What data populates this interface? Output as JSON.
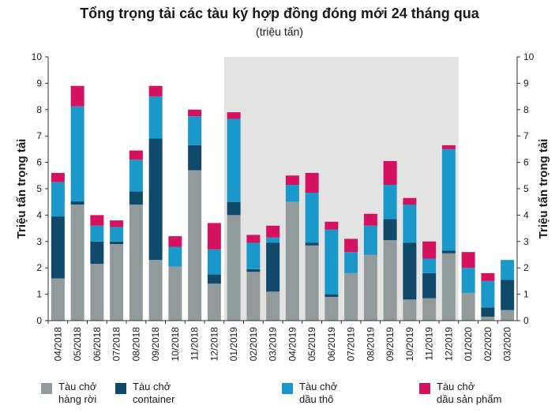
{
  "chart_data": {
    "type": "bar",
    "stacked": true,
    "title": "Tổng trọng tải các tàu ký hợp đồng đóng mới 24 tháng qua",
    "subtitle": "(triệu tấn)",
    "ylabel_left": "Triệu tấn trọng tải",
    "ylabel_right": "Triệu tấn trọng tải",
    "ylim": [
      0,
      10
    ],
    "yticks": [
      0,
      1,
      2,
      3,
      4,
      5,
      6,
      7,
      8,
      9,
      10
    ],
    "grid": false,
    "shaded_range": [
      "01/2019",
      "12/2019"
    ],
    "categories": [
      "04/2018",
      "05/2018",
      "06/2018",
      "07/2018",
      "08/2018",
      "09/2018",
      "10/2018",
      "11/2018",
      "12/2018",
      "01/2019",
      "02/2019",
      "03/2019",
      "04/2019",
      "05/2019",
      "06/2019",
      "07/2019",
      "08/2019",
      "09/2019",
      "10/2019",
      "11/2019",
      "12/2019",
      "01/2020",
      "02/2020",
      "03/2020"
    ],
    "series": [
      {
        "name": "Tàu chở\nhàng rời",
        "color": "#929b9c",
        "values": [
          1.6,
          4.4,
          2.15,
          2.9,
          4.4,
          2.3,
          2.05,
          5.7,
          1.4,
          4.0,
          1.85,
          1.1,
          4.5,
          2.85,
          0.9,
          1.8,
          2.5,
          3.05,
          0.8,
          0.85,
          2.55,
          1.05,
          0.15,
          0.4
        ]
      },
      {
        "name": "Tàu chở\ncontainer",
        "color": "#0f4a6b",
        "values": [
          2.35,
          0.12,
          0.85,
          0.1,
          0.5,
          4.6,
          0.0,
          0.95,
          0.35,
          0.5,
          0.1,
          1.85,
          0.0,
          0.1,
          0.1,
          0.0,
          0.0,
          0.8,
          2.15,
          0.95,
          0.1,
          0.0,
          0.35,
          1.15
        ]
      },
      {
        "name": "Tàu chở\ndầu thô",
        "color": "#1a98c9",
        "values": [
          1.3,
          3.6,
          0.6,
          0.55,
          1.2,
          1.6,
          0.75,
          1.1,
          0.95,
          3.15,
          1.0,
          0.2,
          0.65,
          1.9,
          2.45,
          0.8,
          1.1,
          1.3,
          1.45,
          0.55,
          3.85,
          0.95,
          1.0,
          0.75
        ]
      },
      {
        "name": "Tàu chở\ndầu sản phẩm",
        "color": "#d4125f",
        "values": [
          0.35,
          0.78,
          0.4,
          0.25,
          0.35,
          0.4,
          0.4,
          0.25,
          1.0,
          0.25,
          0.3,
          0.45,
          0.35,
          0.75,
          0.3,
          0.5,
          0.45,
          0.9,
          0.25,
          0.65,
          0.15,
          0.6,
          0.3,
          0.0
        ]
      }
    ],
    "legend_position": "bottom"
  }
}
